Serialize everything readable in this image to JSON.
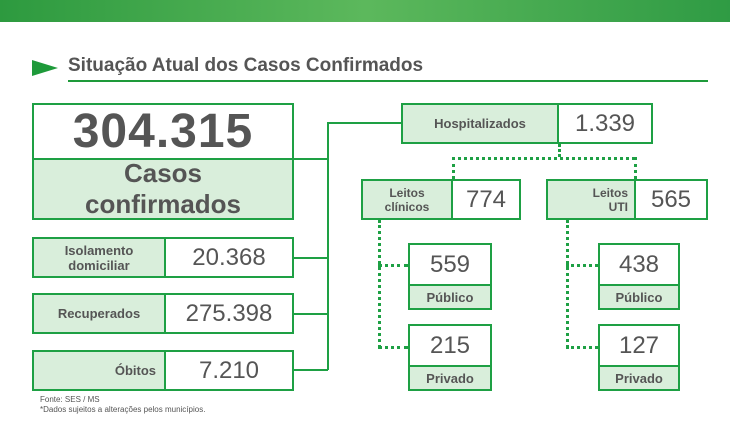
{
  "title": "Situação Atual dos Casos Confirmados",
  "confirmados": {
    "value": "304.315",
    "label_line1": "Casos",
    "label_line2": "confirmados"
  },
  "isolamento": {
    "label_line1": "Isolamento",
    "label_line2": "domiciliar",
    "value": "20.368"
  },
  "recuperados": {
    "label": "Recuperados",
    "value": "275.398"
  },
  "obitos": {
    "label": "Óbitos",
    "value": "7.210"
  },
  "hospitalizados": {
    "label": "Hospitalizados",
    "value": "1.339"
  },
  "leitos_clinicos": {
    "label_line1": "Leitos",
    "label_line2": "clínicos",
    "value": "774",
    "publico": {
      "value": "559",
      "label": "Público"
    },
    "privado": {
      "value": "215",
      "label": "Privado"
    }
  },
  "leitos_uti": {
    "label_line1": "Leitos",
    "label_line2": "UTI",
    "value": "565",
    "publico": {
      "value": "438",
      "label": "Público"
    },
    "privado": {
      "value": "127",
      "label": "Privado"
    }
  },
  "footer": {
    "source": "Fonte: SES / MS",
    "note": "*Dados sujeitos a alterações pelos municípios."
  }
}
